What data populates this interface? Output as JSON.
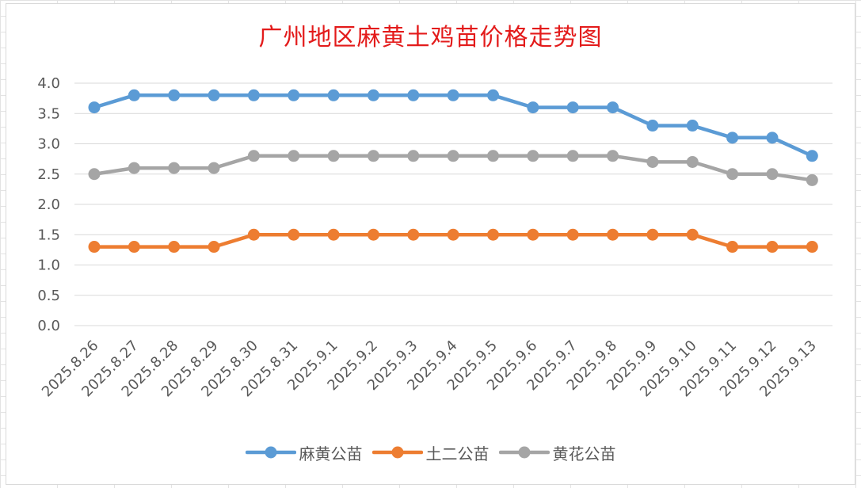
{
  "chart_data": {
    "type": "line",
    "title": "广州地区麻黄土鸡苗价格走势图",
    "xlabel": "",
    "ylabel": "",
    "ylim": [
      0,
      4.0
    ],
    "ytick_labels": [
      "0.0",
      "0.5",
      "1.0",
      "1.5",
      "2.0",
      "2.5",
      "3.0",
      "3.5",
      "4.0"
    ],
    "grid": "horizontal",
    "legend_position": "bottom",
    "categories": [
      "2025.8.26",
      "2025.8.27",
      "2025.8.28",
      "2025.8.29",
      "2025.8.30",
      "2025.8.31",
      "2025.9.1",
      "2025.9.2",
      "2025.9.3",
      "2025.9.4",
      "2025.9.5",
      "2025.9.6",
      "2025.9.7",
      "2025.9.8",
      "2025.9.9",
      "2025.9.10",
      "2025.9.11",
      "2025.9.12",
      "2025.9.13"
    ],
    "series": [
      {
        "name": "麻黄公苗",
        "color": "#5b9bd5",
        "values": [
          3.6,
          3.8,
          3.8,
          3.8,
          3.8,
          3.8,
          3.8,
          3.8,
          3.8,
          3.8,
          3.8,
          3.6,
          3.6,
          3.6,
          3.3,
          3.3,
          3.1,
          3.1,
          2.8
        ]
      },
      {
        "name": "土二公苗",
        "color": "#ed7d31",
        "values": [
          1.3,
          1.3,
          1.3,
          1.3,
          1.5,
          1.5,
          1.5,
          1.5,
          1.5,
          1.5,
          1.5,
          1.5,
          1.5,
          1.5,
          1.5,
          1.5,
          1.3,
          1.3,
          1.3
        ]
      },
      {
        "name": "黄花公苗",
        "color": "#a5a5a5",
        "values": [
          2.5,
          2.6,
          2.6,
          2.6,
          2.8,
          2.8,
          2.8,
          2.8,
          2.8,
          2.8,
          2.8,
          2.8,
          2.8,
          2.8,
          2.7,
          2.7,
          2.5,
          2.5,
          2.4
        ]
      }
    ]
  },
  "colors": {
    "title": "#e31b1b",
    "gridline": "#d9d9d9",
    "tick_text": "#595959"
  }
}
